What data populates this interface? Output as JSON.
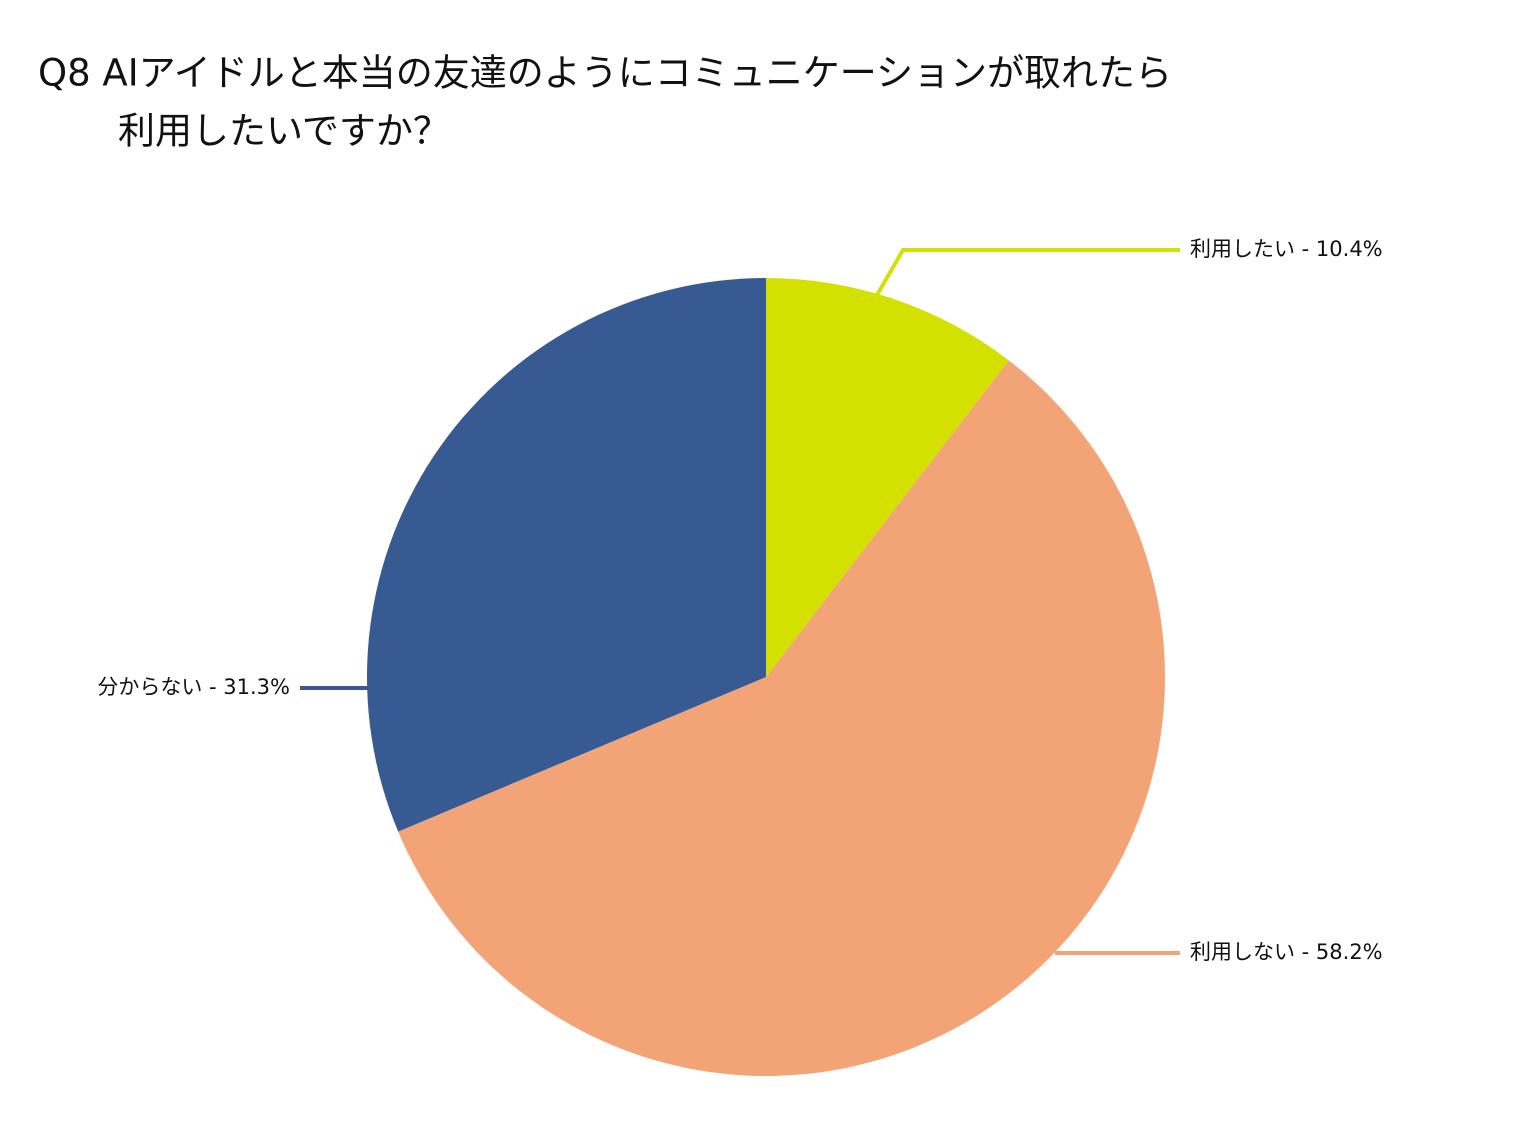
{
  "chart_data": {
    "type": "pie",
    "title": [
      "Q8 AIアイドルと本当の友達のようにコミュニケーションが取れたら",
      "利用したいですか？"
    ],
    "categories": [
      "利用したい - 10.4%",
      "利用しない - 58.2%",
      "分からない - 31.3%"
    ],
    "values": [
      10.4,
      58.2,
      31.3
    ],
    "colors": [
      "#d4e000",
      "#f3a477",
      "#385a92"
    ]
  }
}
